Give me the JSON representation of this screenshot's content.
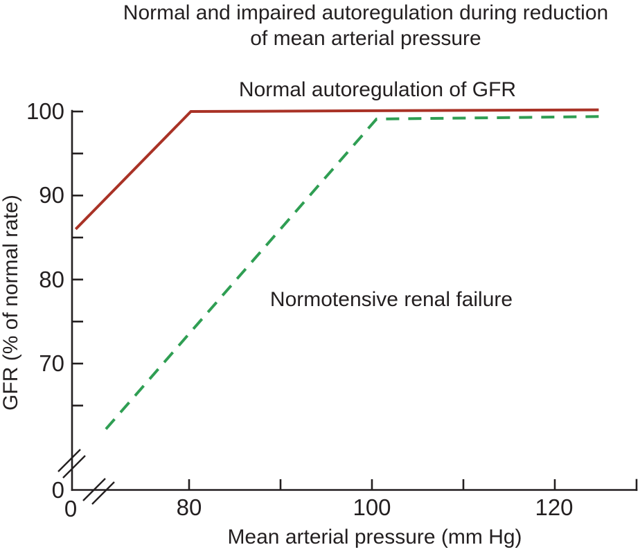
{
  "title": {
    "line1": "Normal and impaired autoregulation during reduction",
    "line2": "of mean arterial pressure"
  },
  "series_labels": {
    "normal": "Normal autoregulation of GFR",
    "failure": "Normotensive renal failure"
  },
  "axes": {
    "x": {
      "label": "Mean arterial pressure (mm Hg)",
      "ticks": [
        {
          "label": "0"
        },
        {
          "label": "80"
        },
        {
          "label": "100"
        },
        {
          "label": "120"
        }
      ]
    },
    "y": {
      "label": "GFR (% of normal rate)",
      "ticks": [
        {
          "label": "0"
        },
        {
          "label": "70"
        },
        {
          "label": "80"
        },
        {
          "label": "90"
        },
        {
          "label": "100"
        }
      ]
    }
  },
  "colors": {
    "line_normal": "#a93226",
    "line_failure": "#2f9e53",
    "axis": "#231f20",
    "text": "#231f20",
    "background": "#ffffff"
  },
  "chart_data": {
    "type": "line",
    "title": "Normal and impaired autoregulation during reduction of mean arterial pressure",
    "xlabel": "Mean arterial pressure (mm Hg)",
    "ylabel": "GFR (% of normal rate)",
    "x_ticks_labeled": [
      80,
      100,
      120
    ],
    "x_ticks_minor": [
      90,
      110
    ],
    "x_origin_tick_label": 0,
    "y_ticks_labeled": [
      70,
      80,
      90,
      100
    ],
    "y_ticks_minor": [
      65,
      75,
      85,
      95
    ],
    "y_origin_tick_label": 0,
    "axis_break_x": true,
    "axis_break_y": true,
    "xlim_visible": [
      67,
      129
    ],
    "ylim_visible": [
      61,
      101
    ],
    "grid": false,
    "legend": "inline-text-labels",
    "series": [
      {
        "name": "Normal autoregulation of GFR",
        "style": "solid",
        "color": "#a93226",
        "points": [
          [
            67.6,
            86
          ],
          [
            80.2,
            100
          ],
          [
            124.8,
            100.2
          ]
        ]
      },
      {
        "name": "Normotensive renal failure",
        "style": "dashed",
        "color": "#2f9e53",
        "points": [
          [
            70.9,
            62.2
          ],
          [
            100.5,
            99.1
          ],
          [
            124.8,
            99.4
          ]
        ]
      }
    ]
  }
}
